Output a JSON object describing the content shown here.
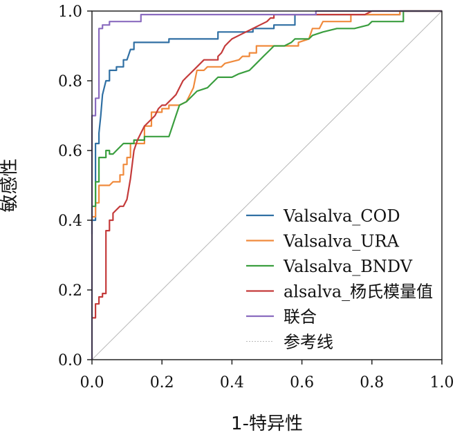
{
  "chart_data": {
    "type": "line",
    "title": "",
    "xlabel": "1-特异性",
    "ylabel": "敏感性",
    "xlim": [
      0,
      1
    ],
    "ylim": [
      0,
      1
    ],
    "x_ticks": [
      "0.0",
      "0.2",
      "0.4",
      "0.6",
      "0.8",
      "1.0"
    ],
    "y_ticks": [
      "0.0",
      "0.2",
      "0.4",
      "0.6",
      "0.8",
      "1.0"
    ],
    "grid": false,
    "legend_position": "bottom-right",
    "series": [
      {
        "name": "Valsalva_COD",
        "color": "#2f6fa3",
        "points": [
          [
            0,
            0.36
          ],
          [
            0,
            0.4
          ],
          [
            0.01,
            0.4
          ],
          [
            0.01,
            0.62
          ],
          [
            0.02,
            0.62
          ],
          [
            0.02,
            0.65
          ],
          [
            0.025,
            0.7
          ],
          [
            0.03,
            0.76
          ],
          [
            0.035,
            0.78
          ],
          [
            0.04,
            0.8
          ],
          [
            0.05,
            0.8
          ],
          [
            0.05,
            0.83
          ],
          [
            0.07,
            0.83
          ],
          [
            0.07,
            0.84
          ],
          [
            0.09,
            0.84
          ],
          [
            0.09,
            0.86
          ],
          [
            0.1,
            0.86
          ],
          [
            0.11,
            0.89
          ],
          [
            0.12,
            0.89
          ],
          [
            0.12,
            0.91
          ],
          [
            0.22,
            0.91
          ],
          [
            0.22,
            0.92
          ],
          [
            0.36,
            0.92
          ],
          [
            0.36,
            0.94
          ],
          [
            0.46,
            0.94
          ],
          [
            0.46,
            0.95
          ],
          [
            0.52,
            0.95
          ],
          [
            0.52,
            0.96
          ],
          [
            0.58,
            0.96
          ],
          [
            0.58,
            0.99
          ],
          [
            0.88,
            0.99
          ],
          [
            0.88,
            1.0
          ],
          [
            1.0,
            1.0
          ]
        ]
      },
      {
        "name": "Valsalva_URA",
        "color": "#f08a3c",
        "points": [
          [
            0,
            0.4
          ],
          [
            0,
            0.41
          ],
          [
            0.01,
            0.41
          ],
          [
            0.01,
            0.45
          ],
          [
            0.02,
            0.45
          ],
          [
            0.02,
            0.5
          ],
          [
            0.05,
            0.5
          ],
          [
            0.06,
            0.51
          ],
          [
            0.08,
            0.51
          ],
          [
            0.08,
            0.53
          ],
          [
            0.09,
            0.53
          ],
          [
            0.09,
            0.56
          ],
          [
            0.1,
            0.56
          ],
          [
            0.1,
            0.58
          ],
          [
            0.11,
            0.58
          ],
          [
            0.11,
            0.62
          ],
          [
            0.15,
            0.62
          ],
          [
            0.15,
            0.67
          ],
          [
            0.17,
            0.67
          ],
          [
            0.17,
            0.71
          ],
          [
            0.2,
            0.71
          ],
          [
            0.2,
            0.72
          ],
          [
            0.22,
            0.72
          ],
          [
            0.22,
            0.73
          ],
          [
            0.25,
            0.73
          ],
          [
            0.27,
            0.74
          ],
          [
            0.29,
            0.78
          ],
          [
            0.3,
            0.83
          ],
          [
            0.32,
            0.83
          ],
          [
            0.33,
            0.84
          ],
          [
            0.37,
            0.84
          ],
          [
            0.38,
            0.85
          ],
          [
            0.42,
            0.86
          ],
          [
            0.43,
            0.87
          ],
          [
            0.45,
            0.87
          ],
          [
            0.45,
            0.88
          ],
          [
            0.47,
            0.88
          ],
          [
            0.47,
            0.9
          ],
          [
            0.59,
            0.9
          ],
          [
            0.59,
            0.91
          ],
          [
            0.62,
            0.92
          ],
          [
            0.63,
            0.95
          ],
          [
            0.65,
            0.95
          ],
          [
            0.66,
            0.97
          ],
          [
            0.74,
            0.97
          ],
          [
            0.74,
            0.99
          ],
          [
            0.88,
            0.99
          ],
          [
            0.88,
            1.0
          ],
          [
            1.0,
            1.0
          ]
        ]
      },
      {
        "name": "Valsalva_BNDV",
        "color": "#3a9e3f",
        "points": [
          [
            0,
            0.4
          ],
          [
            0,
            0.44
          ],
          [
            0.01,
            0.44
          ],
          [
            0.01,
            0.51
          ],
          [
            0.02,
            0.51
          ],
          [
            0.02,
            0.58
          ],
          [
            0.04,
            0.58
          ],
          [
            0.04,
            0.6
          ],
          [
            0.05,
            0.6
          ],
          [
            0.05,
            0.59
          ],
          [
            0.06,
            0.59
          ],
          [
            0.07,
            0.6
          ],
          [
            0.08,
            0.61
          ],
          [
            0.09,
            0.62
          ],
          [
            0.12,
            0.62
          ],
          [
            0.12,
            0.63
          ],
          [
            0.15,
            0.63
          ],
          [
            0.15,
            0.64
          ],
          [
            0.22,
            0.64
          ],
          [
            0.23,
            0.67
          ],
          [
            0.24,
            0.7
          ],
          [
            0.25,
            0.73
          ],
          [
            0.27,
            0.74
          ],
          [
            0.3,
            0.77
          ],
          [
            0.33,
            0.78
          ],
          [
            0.34,
            0.79
          ],
          [
            0.35,
            0.8
          ],
          [
            0.36,
            0.81
          ],
          [
            0.4,
            0.81
          ],
          [
            0.42,
            0.82
          ],
          [
            0.45,
            0.83
          ],
          [
            0.46,
            0.84
          ],
          [
            0.47,
            0.85
          ],
          [
            0.49,
            0.87
          ],
          [
            0.5,
            0.88
          ],
          [
            0.51,
            0.89
          ],
          [
            0.52,
            0.9
          ],
          [
            0.55,
            0.9
          ],
          [
            0.57,
            0.91
          ],
          [
            0.58,
            0.92
          ],
          [
            0.62,
            0.92
          ],
          [
            0.63,
            0.93
          ],
          [
            0.66,
            0.94
          ],
          [
            0.7,
            0.95
          ],
          [
            0.75,
            0.95
          ],
          [
            0.79,
            0.96
          ],
          [
            0.8,
            0.97
          ],
          [
            0.89,
            0.97
          ],
          [
            0.89,
            1.0
          ],
          [
            1.0,
            1.0
          ]
        ]
      },
      {
        "name": "alsalva_杨氏模量值",
        "color": "#c43a3a",
        "points": [
          [
            0,
            0.12
          ],
          [
            0.01,
            0.12
          ],
          [
            0.01,
            0.16
          ],
          [
            0.02,
            0.16
          ],
          [
            0.02,
            0.18
          ],
          [
            0.03,
            0.18
          ],
          [
            0.03,
            0.19
          ],
          [
            0.04,
            0.19
          ],
          [
            0.04,
            0.37
          ],
          [
            0.05,
            0.37
          ],
          [
            0.05,
            0.4
          ],
          [
            0.06,
            0.4
          ],
          [
            0.06,
            0.42
          ],
          [
            0.07,
            0.43
          ],
          [
            0.08,
            0.44
          ],
          [
            0.09,
            0.44
          ],
          [
            0.1,
            0.46
          ],
          [
            0.11,
            0.52
          ],
          [
            0.12,
            0.6
          ],
          [
            0.13,
            0.63
          ],
          [
            0.14,
            0.65
          ],
          [
            0.15,
            0.67
          ],
          [
            0.16,
            0.68
          ],
          [
            0.17,
            0.69
          ],
          [
            0.18,
            0.7
          ],
          [
            0.19,
            0.72
          ],
          [
            0.2,
            0.73
          ],
          [
            0.21,
            0.73
          ],
          [
            0.22,
            0.74
          ],
          [
            0.23,
            0.75
          ],
          [
            0.24,
            0.76
          ],
          [
            0.25,
            0.78
          ],
          [
            0.26,
            0.8
          ],
          [
            0.27,
            0.81
          ],
          [
            0.28,
            0.82
          ],
          [
            0.3,
            0.84
          ],
          [
            0.32,
            0.86
          ],
          [
            0.36,
            0.86
          ],
          [
            0.36,
            0.87
          ],
          [
            0.37,
            0.88
          ],
          [
            0.38,
            0.9
          ],
          [
            0.39,
            0.91
          ],
          [
            0.4,
            0.92
          ],
          [
            0.42,
            0.93
          ],
          [
            0.44,
            0.94
          ],
          [
            0.46,
            0.95
          ],
          [
            0.48,
            0.96
          ],
          [
            0.5,
            0.97
          ],
          [
            0.51,
            0.98
          ],
          [
            0.52,
            0.98
          ],
          [
            0.52,
            0.99
          ],
          [
            0.78,
            0.99
          ],
          [
            0.8,
            1.0
          ],
          [
            1.0,
            1.0
          ]
        ]
      },
      {
        "name": "联合",
        "color": "#8a6bbf",
        "points": [
          [
            0,
            0
          ],
          [
            0,
            0.7
          ],
          [
            0.01,
            0.7
          ],
          [
            0.01,
            0.75
          ],
          [
            0.02,
            0.75
          ],
          [
            0.02,
            0.95
          ],
          [
            0.03,
            0.95
          ],
          [
            0.03,
            0.96
          ],
          [
            0.05,
            0.96
          ],
          [
            0.05,
            0.97
          ],
          [
            0.14,
            0.97
          ],
          [
            0.14,
            0.99
          ],
          [
            0.64,
            0.99
          ],
          [
            0.64,
            1.0
          ],
          [
            1.0,
            1.0
          ]
        ]
      },
      {
        "name": "参考线",
        "color": "#b8b8b8",
        "reference": true,
        "points": [
          [
            0,
            0
          ],
          [
            1,
            1
          ]
        ]
      }
    ]
  }
}
